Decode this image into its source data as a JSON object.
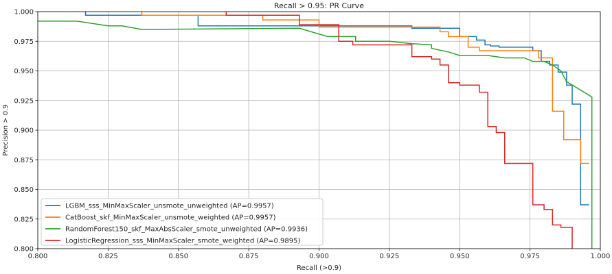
{
  "chart_data": {
    "type": "line",
    "title": "Recall > 0.95: PR Curve",
    "xlabel": "Recall (>0.9)",
    "ylabel": "Precision > 0.9",
    "xlim": [
      0.8,
      1.0
    ],
    "ylim": [
      0.8,
      1.0
    ],
    "xticks": [
      "0.800",
      "0.825",
      "0.850",
      "0.875",
      "0.900",
      "0.925",
      "0.950",
      "0.975",
      "1.000"
    ],
    "yticks": [
      "0.800",
      "0.825",
      "0.850",
      "0.875",
      "0.900",
      "0.925",
      "0.950",
      "0.975",
      "1.000"
    ],
    "grid": true,
    "legend_position": "lower-left",
    "series": [
      {
        "name": "LGBM_sss_MinMaxScaler_unsmote_unweighted (AP=0.9957)",
        "color": "#1f77b4",
        "x": [
          0.817,
          0.817,
          0.857,
          0.857,
          0.933,
          0.933,
          0.95,
          0.95,
          0.956,
          0.956,
          0.959,
          0.959,
          0.961,
          0.961,
          0.964,
          0.964,
          0.969,
          0.969,
          0.976,
          0.976,
          0.979,
          0.979,
          0.982,
          0.982,
          0.985,
          0.985,
          0.988,
          0.988,
          0.99,
          0.99,
          0.993,
          0.993,
          0.996
        ],
        "y": [
          1.0,
          0.997,
          0.997,
          0.988,
          0.988,
          0.986,
          0.986,
          0.979,
          0.979,
          0.976,
          0.976,
          0.972,
          0.972,
          0.971,
          0.971,
          0.97,
          0.97,
          0.97,
          0.97,
          0.967,
          0.967,
          0.958,
          0.958,
          0.955,
          0.955,
          0.949,
          0.949,
          0.938,
          0.938,
          0.922,
          0.922,
          0.837,
          0.837
        ]
      },
      {
        "name": "CatBoost_skf_MinMaxScaler_unsmote_weighted (AP=0.9957)",
        "color": "#ff7f0e",
        "x": [
          0.837,
          0.837,
          0.88,
          0.88,
          0.9,
          0.9,
          0.943,
          0.943,
          0.946,
          0.946,
          0.953,
          0.953,
          0.957,
          0.957,
          0.978,
          0.978,
          0.983,
          0.983,
          0.987,
          0.987,
          0.993,
          0.993,
          0.996
        ],
        "y": [
          1.0,
          0.997,
          0.997,
          0.993,
          0.993,
          0.987,
          0.987,
          0.983,
          0.983,
          0.979,
          0.979,
          0.97,
          0.97,
          0.967,
          0.967,
          0.961,
          0.961,
          0.916,
          0.916,
          0.892,
          0.892,
          0.872,
          0.872
        ]
      },
      {
        "name": "RandomForest150_skf_MaxAbsScaler_smote_unweighted (AP=0.9936)",
        "color": "#2ca02c",
        "x": [
          0.8,
          0.814,
          0.825,
          0.83,
          0.837,
          0.893,
          0.903,
          0.913,
          0.913,
          0.925,
          0.933,
          0.94,
          0.94,
          0.946,
          0.95,
          0.96,
          0.966,
          0.973,
          0.976,
          0.98,
          0.983,
          0.986,
          0.988,
          0.997,
          0.997
        ],
        "y": [
          0.992,
          0.992,
          0.988,
          0.988,
          0.985,
          0.986,
          0.979,
          0.979,
          0.975,
          0.975,
          0.973,
          0.972,
          0.969,
          0.966,
          0.963,
          0.963,
          0.961,
          0.961,
          0.958,
          0.958,
          0.955,
          0.95,
          0.941,
          0.928,
          0.8
        ]
      },
      {
        "name": "LogisticRegression_sss_MinMaxScaler_smote_weighted (AP=0.9895)",
        "color": "#d62728",
        "x": [
          0.867,
          0.867,
          0.893,
          0.893,
          0.907,
          0.907,
          0.912,
          0.912,
          0.933,
          0.933,
          0.94,
          0.94,
          0.943,
          0.943,
          0.946,
          0.946,
          0.95,
          0.95,
          0.954,
          0.954,
          0.957,
          0.957,
          0.96,
          0.96,
          0.963,
          0.963,
          0.966,
          0.966,
          0.97,
          0.97,
          0.976,
          0.976,
          0.98,
          0.98,
          0.983,
          0.983,
          0.986,
          0.986,
          0.99,
          0.99
        ],
        "y": [
          1.0,
          0.997,
          0.997,
          0.989,
          0.989,
          0.975,
          0.975,
          0.972,
          0.972,
          0.962,
          0.962,
          0.96,
          0.96,
          0.955,
          0.955,
          0.94,
          0.94,
          0.938,
          0.938,
          0.938,
          0.938,
          0.932,
          0.932,
          0.903,
          0.903,
          0.898,
          0.898,
          0.872,
          0.872,
          0.872,
          0.872,
          0.837,
          0.837,
          0.833,
          0.833,
          0.82,
          0.82,
          0.818,
          0.818,
          0.8
        ]
      }
    ]
  }
}
